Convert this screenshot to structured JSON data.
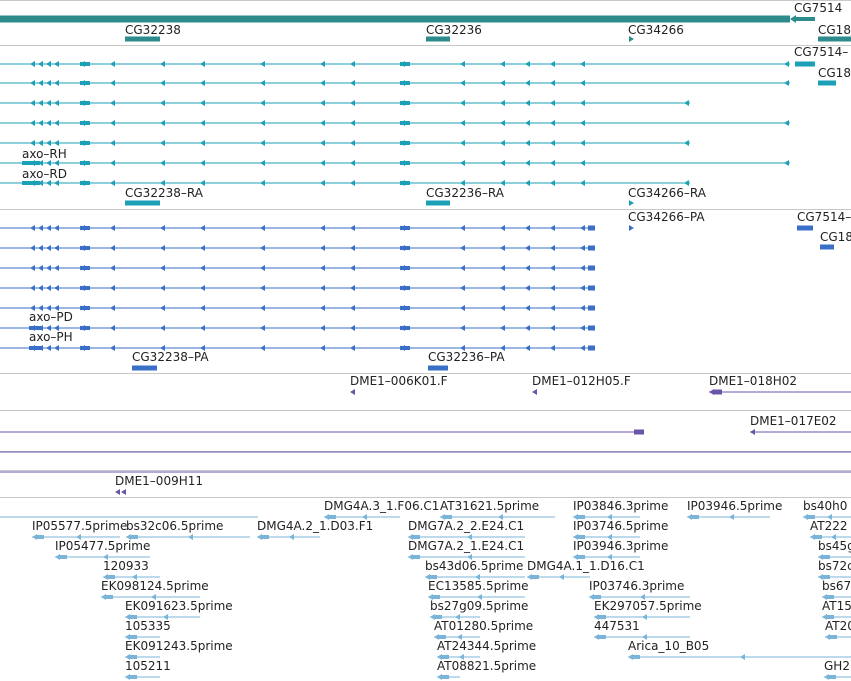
{
  "colors": {
    "gene": "#2e8b8b",
    "transcript": "#1ba0b8",
    "protein": "#3a6fc8",
    "clone": "#6a55a8",
    "est": "#7ab4d8",
    "divider": "#c8c8c8"
  },
  "tracks": [
    {
      "id": "gene-track",
      "color_key": "gene",
      "rows": [
        {
          "label": "",
          "line_from": 0,
          "line_to": 790,
          "exon_style": "thick"
        },
        {
          "label": "CG7514",
          "label_pos": 794,
          "line_from": 795,
          "line_to": 815
        },
        {
          "label": "CG32238",
          "label_pos": 125,
          "line_from": 125,
          "line_to": 160
        },
        {
          "label": "CG32236",
          "label_pos": 426,
          "line_from": 426,
          "line_to": 450
        },
        {
          "label": "CG34266",
          "label_pos": 628,
          "line_from": 628,
          "line_to": 634
        },
        {
          "label": "CG18",
          "label_pos": 818,
          "line_from": 818,
          "line_to": 851
        }
      ]
    },
    {
      "id": "transcript-track",
      "color_key": "transcript",
      "rows": [
        {
          "label": "",
          "line_from": 0,
          "line_to": 790
        },
        {
          "label": "CG7514–",
          "label_pos": 794,
          "line_from": 795,
          "line_to": 815
        },
        {
          "label": "",
          "line_from": 0,
          "line_to": 790
        },
        {
          "label": "CG18",
          "label_pos": 818,
          "line_from": 818,
          "line_to": 851
        },
        {
          "label": "",
          "line_from": 0,
          "line_to": 690
        },
        {
          "label": "",
          "line_from": 0,
          "line_to": 790
        },
        {
          "label": "",
          "line_from": 0,
          "line_to": 690
        },
        {
          "label": "axo–RH",
          "label_pos": 22,
          "line_from": 0,
          "line_to": 790
        },
        {
          "label": "axo–RD",
          "label_pos": 22,
          "line_from": 0,
          "line_to": 690
        },
        {
          "label": "CG32238–RA",
          "label_pos": 125,
          "line_from": 125,
          "line_to": 160
        },
        {
          "label": "CG32236–RA",
          "label_pos": 426,
          "line_from": 426,
          "line_to": 450
        },
        {
          "label": "CG34266–RA",
          "label_pos": 628,
          "line_from": 628,
          "line_to": 634
        }
      ]
    },
    {
      "id": "protein-track",
      "color_key": "protein",
      "rows": [
        {
          "label": "CG34266–PA",
          "label_pos": 628
        },
        {
          "label": "CG7514–",
          "label_pos": 797
        },
        {
          "label": "CG18",
          "label_pos": 820
        },
        {
          "label": "axo–PD",
          "label_pos": 29
        },
        {
          "label": "axo–PH",
          "label_pos": 29
        },
        {
          "label": "CG32238–PA",
          "label_pos": 132
        },
        {
          "label": "CG32236–PA",
          "label_pos": 428
        }
      ]
    },
    {
      "id": "clone-track",
      "color_key": "clone",
      "rows": [
        {
          "label": "DME1–006K01.F",
          "label_pos": 350
        },
        {
          "label": "DME1–012H05.F",
          "label_pos": 532
        },
        {
          "label": "DME1–018H02",
          "label_pos": 709
        },
        {
          "label": "DME1–017E02",
          "label_pos": 750
        },
        {
          "label": "DME1–009H11",
          "label_pos": 115
        }
      ]
    },
    {
      "id": "est-track",
      "color_key": "est",
      "rows": [
        {
          "label": "DMG4A.3_1.F06.C1",
          "label_pos": 324
        },
        {
          "label": "AT31621.5prime",
          "label_pos": 440
        },
        {
          "label": "IP03846.3prime",
          "label_pos": 573
        },
        {
          "label": "IP03946.5prime",
          "label_pos": 687
        },
        {
          "label": "bs40h0",
          "label_pos": 803
        },
        {
          "label": "IP05577.5prime",
          "label_pos": 32
        },
        {
          "label": "bs32c06.5prime",
          "label_pos": 126
        },
        {
          "label": "DMG4A.2_1.D03.F1",
          "label_pos": 257
        },
        {
          "label": "DMG7A.2_2.E24.C1",
          "label_pos": 408
        },
        {
          "label": "IP03746.5prime",
          "label_pos": 573
        },
        {
          "label": "AT222",
          "label_pos": 810
        },
        {
          "label": "IP05477.5prime",
          "label_pos": 55
        },
        {
          "label": "DMG7A.2_1.E24.C1",
          "label_pos": 408
        },
        {
          "label": "IP03946.3prime",
          "label_pos": 573
        },
        {
          "label": "bs45g",
          "label_pos": 818
        },
        {
          "label": "120933",
          "label_pos": 103
        },
        {
          "label": "bs43d06.5prime",
          "label_pos": 425
        },
        {
          "label": "DMG4A.1_1.D16.C1",
          "label_pos": 527
        },
        {
          "label": "bs72c",
          "label_pos": 818
        },
        {
          "label": "EK098124.5prime",
          "label_pos": 101
        },
        {
          "label": "EC13585.5prime",
          "label_pos": 428
        },
        {
          "label": "IP03746.3prime",
          "label_pos": 589
        },
        {
          "label": "bs67",
          "label_pos": 822
        },
        {
          "label": "EK091623.5prime",
          "label_pos": 125
        },
        {
          "label": "bs27g09.5prime",
          "label_pos": 430
        },
        {
          "label": "EK297057.5prime",
          "label_pos": 594
        },
        {
          "label": "AT15",
          "label_pos": 822
        },
        {
          "label": "105335",
          "label_pos": 125
        },
        {
          "label": "AT01280.5prime",
          "label_pos": 434
        },
        {
          "label": "447531",
          "label_pos": 594
        },
        {
          "label": "AT20",
          "label_pos": 825
        },
        {
          "label": "EK091243.5prime",
          "label_pos": 125
        },
        {
          "label": "AT24344.5prime",
          "label_pos": 437
        },
        {
          "label": "Arica_10_B05",
          "label_pos": 628
        },
        {
          "label": "105211",
          "label_pos": 125
        },
        {
          "label": "AT08821.5prime",
          "label_pos": 437
        },
        {
          "label": "GH2",
          "label_pos": 824
        }
      ]
    }
  ]
}
